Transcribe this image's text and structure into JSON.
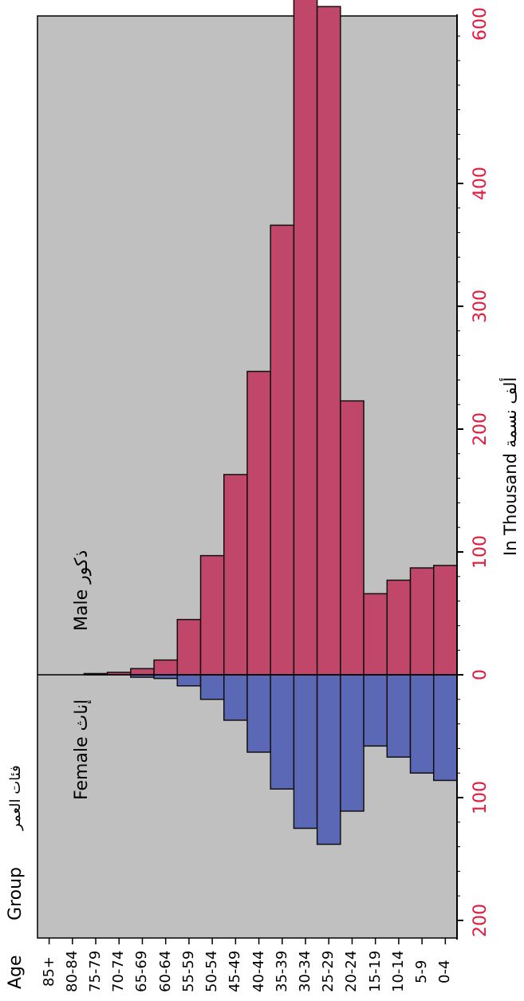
{
  "chart_data": {
    "type": "bar",
    "orientation": "population-pyramid, rotated 90 degrees counter-clockwise",
    "categories": [
      "85+",
      "80-84",
      "75-79",
      "70-74",
      "65-69",
      "60-64",
      "55-59",
      "50-54",
      "45-49",
      "40-44",
      "35-39",
      "30-34",
      "25-29",
      "20-24",
      "15-19",
      "10-14",
      "5-9",
      "0-4"
    ],
    "series": [
      {
        "name": "Male ذكور",
        "color": "#C0466A",
        "values": [
          0,
          0,
          1,
          2,
          5,
          12,
          45,
          97,
          163,
          247,
          366,
          563,
          544,
          223,
          66,
          77,
          87,
          89
        ]
      },
      {
        "name": "Female إناث",
        "color": "#5B68B5",
        "values": [
          0,
          0,
          0,
          0,
          2,
          3,
          9,
          20,
          37,
          63,
          93,
          125,
          138,
          111,
          58,
          67,
          80,
          86
        ]
      }
    ],
    "value_axis": {
      "label": "In Thousand ألف نسمة",
      "male_ticks": [
        "0",
        "100",
        "200",
        "300",
        "400",
        "600"
      ],
      "female_ticks": [
        "100",
        "200"
      ],
      "male_range": [
        0,
        620
      ],
      "female_range": [
        0,
        220
      ],
      "tick_color": "#E8173C"
    },
    "category_axis": {
      "label_en_1": "Age",
      "label_en_2": "Group",
      "label_ar": "فئات العمر"
    },
    "annotations": {
      "male": "Male ذكور",
      "female": "Female إناث"
    },
    "plot_background": "#C0C0C0",
    "grid": false
  }
}
